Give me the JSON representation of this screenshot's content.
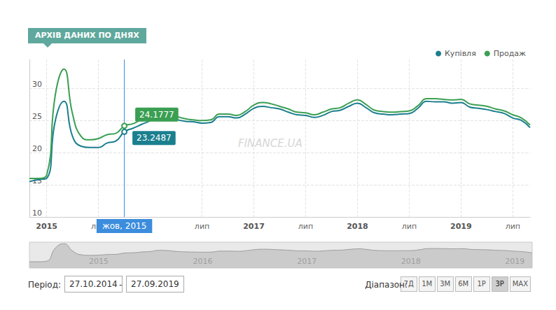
{
  "header": {
    "title": "АРХІВ ДАНИХ ПО ДНЯХ"
  },
  "chart_data": {
    "type": "line",
    "categories": [
      null,
      null,
      "2015",
      null,
      null,
      null,
      null,
      null,
      "лип",
      null,
      null,
      null,
      null,
      null,
      null,
      null,
      null,
      null,
      null,
      null,
      "лип",
      null,
      null,
      null,
      null,
      null,
      "2017",
      null,
      null,
      null,
      null,
      null,
      "лип",
      null,
      null,
      null,
      null,
      null,
      "2018",
      null,
      null,
      null,
      null,
      null,
      "лип",
      null,
      null,
      null,
      null,
      null,
      "2019",
      null,
      null,
      null,
      null,
      null,
      "лип",
      null,
      null
    ],
    "series": [
      {
        "name": "Купівля",
        "color": "#1b7f8e",
        "values": [
          15.5,
          15.8,
          16.0,
          25.0,
          28.0,
          22.5,
          21.0,
          20.8,
          20.8,
          21.5,
          21.8,
          23.2487,
          23.8,
          24.4,
          25.0,
          26.0,
          25.8,
          25.2,
          24.9,
          24.8,
          24.6,
          24.7,
          25.6,
          25.6,
          25.4,
          26.0,
          26.9,
          27.2,
          27.0,
          26.8,
          26.3,
          25.9,
          25.8,
          25.5,
          25.8,
          26.4,
          26.6,
          27.2,
          27.7,
          27.0,
          26.2,
          26.0,
          25.9,
          26.0,
          26.1,
          26.9,
          28.0,
          27.9,
          27.9,
          27.7,
          27.8,
          27.1,
          26.9,
          26.7,
          26.4,
          26.1,
          25.4,
          25.0,
          23.9
        ]
      },
      {
        "name": "Продаж",
        "color": "#3a9f52",
        "values": [
          16.0,
          16.0,
          16.5,
          29.0,
          33.0,
          26.0,
          22.5,
          22.0,
          22.2,
          22.8,
          23.0,
          24.1777,
          24.5,
          25.2,
          25.7,
          26.8,
          26.5,
          25.7,
          25.3,
          25.1,
          25.0,
          25.1,
          26.0,
          26.0,
          25.8,
          26.4,
          27.4,
          27.8,
          27.6,
          27.2,
          26.8,
          26.3,
          26.2,
          25.9,
          26.3,
          26.8,
          27.0,
          27.7,
          28.2,
          27.5,
          26.6,
          26.4,
          26.3,
          26.4,
          26.5,
          27.3,
          28.4,
          28.4,
          28.3,
          28.2,
          28.3,
          27.6,
          27.4,
          27.2,
          26.8,
          26.5,
          25.9,
          25.4,
          24.3
        ]
      }
    ],
    "ylim": [
      10,
      34.5
    ],
    "yticks": [
      10,
      15,
      20,
      25,
      30
    ],
    "grid": true,
    "legend": "top-right",
    "watermark": "FINANCE.UA",
    "annotation": {
      "label": "жов, 2015",
      "values": [
        23.2487,
        24.1777
      ]
    },
    "navigator": {
      "categories": [
        null,
        null,
        null,
        null,
        null,
        null,
        null,
        null,
        "2015",
        null,
        null,
        null,
        null,
        null,
        null,
        null,
        null,
        null,
        null,
        null,
        "2016",
        null,
        null,
        null,
        null,
        null,
        null,
        null,
        null,
        null,
        null,
        null,
        "2017",
        null,
        null,
        null,
        null,
        null,
        null,
        null,
        null,
        null,
        null,
        null,
        "2018",
        null,
        null,
        null,
        null,
        null,
        null,
        null,
        null,
        null,
        null,
        null,
        "2019",
        null,
        null
      ]
    }
  },
  "controls": {
    "period_label": "Період:",
    "from": "27.10.2014",
    "separator": "-",
    "to": "27.09.2019",
    "range_label": "Діапазон:",
    "range_buttons": [
      "7Д",
      "1М",
      "3М",
      "6М",
      "1Р",
      "3Р",
      "MAX"
    ],
    "active": "3Р"
  }
}
